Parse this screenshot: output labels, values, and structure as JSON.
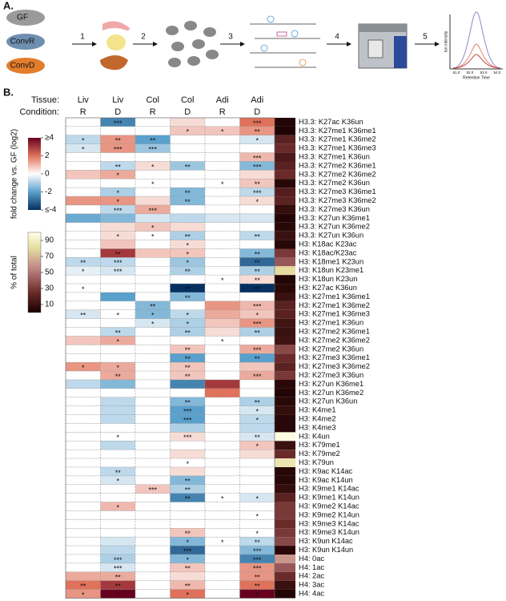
{
  "panel_a": {
    "label": "A.",
    "groups": [
      "GF",
      "ConvR",
      "ConvD"
    ],
    "steps": [
      "1",
      "2",
      "3",
      "4",
      "5"
    ],
    "ms_ylabel": "Ion intensity",
    "ms_xlabel": "Retention Time",
    "ms_xticks": [
      "51.0",
      "52.0",
      "53.0",
      "54.0"
    ]
  },
  "chart_data": {
    "type": "heatmap",
    "panel_label": "B.",
    "tissue_label": "Tissue:",
    "condition_label": "Condition:",
    "tissues": [
      "Liv",
      "Liv",
      "Col",
      "Col",
      "Adi",
      "Adi"
    ],
    "conditions": [
      "R",
      "D",
      "R",
      "D",
      "R",
      "D"
    ],
    "rows": [
      "H3.3: K27ac K36un",
      "H3.3: K27me1 K36me1",
      "H3.3: K27me1 K36me2",
      "H3.3: K27me1 K36me3",
      "H3.3: K27me1 K36un",
      "H3.3: K27me2 K36me1",
      "H3.3: K27me2 K36me2",
      "H3.3: K27me2 K36un",
      "H3.3: K27me3 K36me1",
      "H3.3: K27me3 K36me2",
      "H3.3: K27me3 K36un",
      "H3.3: K27un K36me1",
      "H3.3: K27un K36me2",
      "H3.3: K27un K36un",
      "H3: K18ac K23ac",
      "H3: K18ac/K23ac",
      "H3: K18me1 K23un",
      "H3: K18un K23me1",
      "H3: K18un K23un",
      "H3: K27ac K36un",
      "H3: K27me1 K36me1",
      "H3: K27me1 K36me2",
      "H3: K27me1 K36me3",
      "H3: K27me1 K36un",
      "H3: K27me2 K36me1",
      "H3: K27me2 K36me2",
      "H3: K27me2 K36un",
      "H3: K27me3 K36me1",
      "H3: K27me3 K36me2",
      "H3: K27me3 K36un",
      "H3: K27un K36me1",
      "H3: K27un K36me2",
      "H3: K27un K36un",
      "H3: K4me1",
      "H3: K4me2",
      "H3: K4me3",
      "H3: K4un",
      "H3: K79me1",
      "H3: K79me2",
      "H3: K79un",
      "H3: K9ac K14ac",
      "H3: K9ac K14un",
      "H3: K9me1 K14ac",
      "H3: K9me1 K14un",
      "H3: K9me2 K14ac",
      "H3: K9me2 K14un",
      "H3: K9me3 K14ac",
      "H3: K9me3 K14un",
      "H3: K9un K14ac",
      "H3: K9un K14un",
      "H4: 0ac",
      "H4: 1ac",
      "H4: 2ac",
      "H4: 3ac",
      "H4: 4ac"
    ],
    "values": [
      [
        0,
        -2.5,
        0,
        0.5,
        0,
        2
      ],
      [
        0,
        0,
        0,
        0.8,
        0.8,
        1.5
      ],
      [
        -0.8,
        1.5,
        -2,
        0,
        0,
        -0.5
      ],
      [
        -0.5,
        1.5,
        -1.2,
        0,
        0,
        0
      ],
      [
        0,
        0,
        0,
        0,
        0,
        1
      ],
      [
        0,
        -0.8,
        0.5,
        -1.2,
        0,
        -1.5
      ],
      [
        0.8,
        1.2,
        0,
        0,
        0,
        0.5
      ],
      [
        0,
        0,
        0,
        0,
        0,
        0.8
      ],
      [
        0,
        -1,
        0,
        -1.5,
        0,
        -0.8
      ],
      [
        1.5,
        1.5,
        0.5,
        -1.5,
        0,
        0.5
      ],
      [
        0,
        -0.8,
        1.2,
        0,
        0,
        0
      ],
      [
        -1.8,
        -1.5,
        -0.5,
        -0.8,
        -0.5,
        -0.5
      ],
      [
        0,
        0.5,
        0.8,
        0.5,
        0,
        0
      ],
      [
        0,
        0.5,
        0,
        -1,
        0,
        -0.8
      ],
      [
        0,
        0.8,
        0,
        0.5,
        0,
        0
      ],
      [
        0,
        3,
        0.8,
        0.8,
        0,
        -1.5
      ],
      [
        -0.8,
        -0.8,
        0,
        -1.2,
        0,
        -3
      ],
      [
        -0.3,
        -0.5,
        0,
        -1,
        0,
        -1
      ],
      [
        0,
        0,
        0,
        0,
        0,
        0.5
      ],
      [
        0,
        0,
        0,
        -4,
        0,
        -4
      ],
      [
        0,
        -2,
        0,
        -1.5,
        0,
        0
      ],
      [
        0,
        0,
        -1.5,
        0,
        1.5,
        1
      ],
      [
        -0.5,
        0,
        -1.5,
        -0.8,
        1.2,
        0.8
      ],
      [
        0,
        0,
        -0.5,
        -1,
        0.8,
        1.5
      ],
      [
        0,
        -0.8,
        0,
        -1,
        0.5,
        -1
      ],
      [
        0.8,
        1.2,
        0,
        0,
        0,
        0
      ],
      [
        0,
        0,
        0,
        0.8,
        0,
        1.2
      ],
      [
        0,
        0,
        0,
        -2,
        0,
        -2
      ],
      [
        1.5,
        1.2,
        0,
        0.8,
        0,
        0.8
      ],
      [
        0,
        1.2,
        0,
        0.8,
        0,
        1.2
      ],
      [
        -0.8,
        -1.5,
        0,
        -2.5,
        3,
        0
      ],
      [
        0,
        0,
        0,
        0,
        2,
        0
      ],
      [
        0,
        -0.8,
        0,
        -1.5,
        0,
        -1
      ],
      [
        0,
        -0.8,
        0,
        -2,
        0,
        -0.5
      ],
      [
        0,
        -0.8,
        0,
        -2,
        0,
        -0.8
      ],
      [
        0,
        0,
        0,
        -1,
        0,
        -0.8
      ],
      [
        0,
        0,
        0,
        0.5,
        0,
        -0.5
      ],
      [
        0,
        -0.8,
        0,
        0,
        0,
        0.8
      ],
      [
        0,
        0,
        0,
        0.5,
        0,
        0.5
      ],
      [
        0,
        0,
        0,
        0,
        0,
        0
      ],
      [
        0,
        -0.8,
        0,
        0.5,
        0,
        0
      ],
      [
        0,
        -0.5,
        0,
        -1.5,
        0,
        0
      ],
      [
        0,
        0,
        0.8,
        -1,
        0,
        0
      ],
      [
        0,
        0,
        0,
        -2.5,
        0,
        -0.5
      ],
      [
        0,
        1,
        0,
        0,
        0,
        0
      ],
      [
        0,
        0,
        0,
        0,
        0,
        0
      ],
      [
        0,
        0,
        0,
        0,
        0,
        0
      ],
      [
        0,
        0,
        0,
        0.8,
        0,
        0
      ],
      [
        0,
        -0.5,
        0,
        -1.5,
        0,
        -0.8
      ],
      [
        0,
        -0.8,
        0,
        -3,
        0,
        -1.5
      ],
      [
        0,
        -1,
        0,
        -1.5,
        0,
        -2.5
      ],
      [
        0,
        -0.5,
        0,
        0.8,
        0,
        1.5
      ],
      [
        1.2,
        1.2,
        0,
        0.5,
        0,
        1.5
      ],
      [
        2,
        3,
        0,
        1,
        0,
        2
      ],
      [
        1.5,
        4,
        0,
        2,
        0,
        4
      ]
    ],
    "stars": [
      [
        null,
        "***",
        null,
        null,
        null,
        "***"
      ],
      [
        null,
        null,
        null,
        "*",
        "*",
        "**"
      ],
      [
        "*",
        "**",
        "**",
        null,
        null,
        "*"
      ],
      [
        "*",
        "***",
        "***",
        null,
        null,
        null
      ],
      [
        null,
        null,
        null,
        null,
        null,
        "***"
      ],
      [
        null,
        "**",
        "*",
        "**",
        null,
        "***"
      ],
      [
        null,
        "*",
        null,
        null,
        null,
        null
      ],
      [
        null,
        null,
        "*",
        null,
        "*",
        "**"
      ],
      [
        null,
        "*",
        null,
        "**",
        null,
        "***"
      ],
      [
        null,
        "*",
        null,
        "**",
        null,
        "*"
      ],
      [
        null,
        "***",
        "***",
        null,
        null,
        null
      ],
      [
        null,
        null,
        null,
        null,
        null,
        null
      ],
      [
        null,
        null,
        "*",
        null,
        null,
        null
      ],
      [
        null,
        "*",
        "*",
        "**",
        null,
        "**"
      ],
      [
        null,
        null,
        null,
        "*",
        null,
        null
      ],
      [
        null,
        "**",
        null,
        "*",
        null,
        "**"
      ],
      [
        "**",
        "***",
        null,
        "*",
        null,
        "**"
      ],
      [
        "*",
        "***",
        null,
        "**",
        null,
        "**"
      ],
      [
        null,
        null,
        null,
        null,
        "*",
        "**"
      ],
      [
        "*",
        null,
        null,
        "**",
        null,
        "***"
      ],
      [
        null,
        null,
        null,
        "**",
        null,
        null
      ],
      [
        null,
        null,
        "**",
        null,
        null,
        "***"
      ],
      [
        "**",
        "*",
        "*",
        "*",
        null,
        "*"
      ],
      [
        null,
        null,
        "*",
        "*",
        null,
        "***"
      ],
      [
        null,
        "**",
        null,
        "**",
        null,
        "**"
      ],
      [
        null,
        "*",
        null,
        null,
        "*",
        null
      ],
      [
        null,
        null,
        null,
        "**",
        null,
        "***"
      ],
      [
        null,
        null,
        null,
        "**",
        null,
        "**"
      ],
      [
        "*",
        "*",
        null,
        "**",
        null,
        null
      ],
      [
        null,
        "**",
        null,
        "**",
        null,
        "***"
      ],
      [
        null,
        null,
        null,
        null,
        null,
        null
      ],
      [
        null,
        null,
        null,
        null,
        null,
        null
      ],
      [
        null,
        null,
        null,
        "**",
        null,
        "**"
      ],
      [
        null,
        null,
        null,
        "***",
        null,
        "*"
      ],
      [
        null,
        null,
        null,
        "***",
        null,
        "*"
      ],
      [
        null,
        null,
        null,
        null,
        null,
        null
      ],
      [
        null,
        "*",
        null,
        "***",
        null,
        "**"
      ],
      [
        null,
        null,
        null,
        null,
        null,
        "*"
      ],
      [
        null,
        null,
        null,
        null,
        null,
        null
      ],
      [
        null,
        null,
        null,
        "*",
        null,
        null
      ],
      [
        null,
        "**",
        null,
        null,
        null,
        null
      ],
      [
        null,
        "*",
        null,
        "**",
        null,
        null
      ],
      [
        null,
        null,
        "***",
        "**",
        null,
        null
      ],
      [
        null,
        null,
        null,
        "**",
        "*",
        "*"
      ],
      [
        null,
        "*",
        null,
        null,
        null,
        null
      ],
      [
        null,
        null,
        null,
        null,
        null,
        "*"
      ],
      [
        null,
        null,
        null,
        null,
        null,
        null
      ],
      [
        null,
        null,
        null,
        "**",
        null,
        "*"
      ],
      [
        null,
        null,
        null,
        "*",
        "*",
        "**"
      ],
      [
        null,
        null,
        null,
        "***",
        null,
        "***"
      ],
      [
        null,
        "***",
        null,
        "*",
        null,
        "***"
      ],
      [
        null,
        "***",
        null,
        "**",
        null,
        "***"
      ],
      [
        null,
        "**",
        null,
        null,
        null,
        "**"
      ],
      [
        "**",
        "**",
        null,
        "**",
        null,
        "**"
      ],
      [
        "*",
        "*",
        null,
        "*",
        null,
        "*"
      ]
    ],
    "percent": [
      3,
      2,
      20,
      25,
      15,
      20,
      25,
      4,
      18,
      20,
      8,
      3,
      5,
      10,
      4,
      30,
      40,
      80,
      3,
      5,
      10,
      20,
      20,
      12,
      10,
      12,
      35,
      25,
      20,
      30,
      5,
      3,
      5,
      8,
      4,
      4,
      98,
      10,
      25,
      85,
      4,
      4,
      8,
      20,
      30,
      30,
      25,
      30,
      35,
      5,
      60,
      40,
      25,
      10,
      3
    ],
    "colorbar": {
      "label": "fold change vs. GF (log2)",
      "lim": [
        -4,
        4
      ],
      "ticks": [
        {
          "value": 4,
          "label": "≥4"
        },
        2,
        0,
        -2,
        {
          "value": -4,
          "label": "≤-4"
        }
      ]
    },
    "percent_colorbar": {
      "label": "% of total",
      "lim": [
        0,
        100
      ],
      "ticks": [
        90,
        70,
        50,
        30,
        10
      ]
    }
  }
}
